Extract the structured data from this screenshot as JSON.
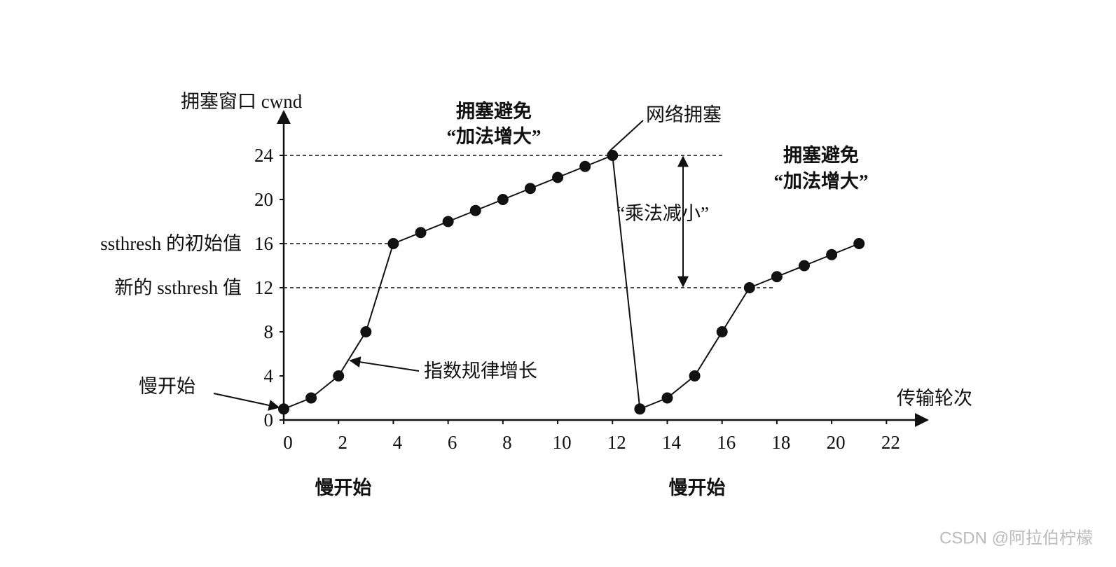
{
  "chart_data": {
    "type": "line",
    "y_label": "拥塞窗口 cwnd",
    "x_label": "传输轮次",
    "series": [
      {
        "color": "#111",
        "x": [
          0,
          1,
          2,
          3,
          4,
          5,
          6,
          7,
          8,
          9,
          10,
          11,
          12
        ],
        "values": [
          1,
          2,
          4,
          8,
          16,
          17,
          18,
          19,
          20,
          21,
          22,
          23,
          24
        ]
      },
      {
        "color": "#111",
        "x": [
          13,
          14,
          15,
          16,
          17,
          18,
          19,
          20,
          21
        ],
        "values": [
          1,
          2,
          4,
          8,
          12,
          13,
          14,
          15,
          16
        ]
      }
    ],
    "xlim": [
      0,
      23.5
    ],
    "ylim": [
      0,
      28
    ],
    "xticks": [
      0,
      2,
      4,
      6,
      8,
      10,
      12,
      14,
      16,
      18,
      20,
      22
    ],
    "yticks": [
      0,
      4,
      8,
      12,
      16,
      20,
      24
    ],
    "reference_lines": [
      {
        "value": 24
      },
      {
        "value": 16,
        "label": "ssthresh 的初始值"
      },
      {
        "value": 12,
        "label": "新的 ssthresh 值"
      }
    ],
    "annotations": {
      "avoidance_1": {
        "line1": "拥塞避免",
        "line2": "“加法增大”"
      },
      "avoidance_2": {
        "line1": "拥塞避免",
        "line2": "“加法增大”"
      },
      "congestion": "网络拥塞",
      "multiplicative_decrease": "“乘法减小”",
      "slow_start_point": "慢开始",
      "exponential": "指数规律增长",
      "slow_start_1": "慢开始",
      "slow_start_2": "慢开始"
    }
  },
  "watermark": "CSDN @阿拉伯柠檬"
}
